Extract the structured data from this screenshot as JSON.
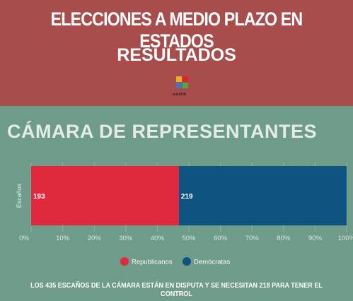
{
  "header": {
    "title": "ELECCIONES A MEDIO PLAZO EN ESTADOS",
    "subtitle": "RESULTADOS",
    "logo_text": "teleSUR",
    "colors": {
      "background": "#a94c4c",
      "text": "#ffffff"
    }
  },
  "section": {
    "title": "CÁMARA DE REPRESENTANTES",
    "background": "#6e9b8a"
  },
  "chart_data": {
    "type": "bar",
    "orientation": "horizontal",
    "stacked": true,
    "stack_mode": "percent",
    "categories": [
      "Escaños"
    ],
    "series": [
      {
        "name": "Republicanos",
        "values": [
          193
        ],
        "color": "#e0283f"
      },
      {
        "name": "Demócratas",
        "values": [
          219
        ],
        "color": "#0e5480"
      }
    ],
    "x_ticks": [
      "0%",
      "10%",
      "20%",
      "30%",
      "40%",
      "50%",
      "60%",
      "70%",
      "80%",
      "90%",
      "100%"
    ],
    "xlim": [
      0,
      100
    ],
    "grid": "vertical",
    "legend": "bottom-center"
  },
  "footer": {
    "note": "LOS 435 ESCAÑOS DE LA CÁMARA ESTÁN EN DISPUTA Y SE NECESITAN 218 PARA TENER EL CONTROL"
  }
}
